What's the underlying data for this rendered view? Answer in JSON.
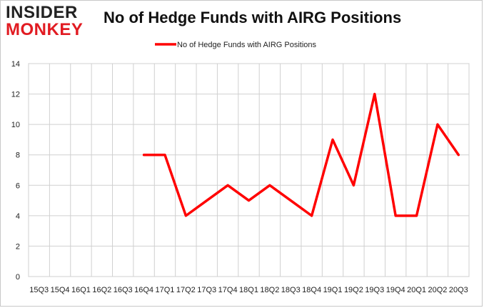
{
  "logo": {
    "line1": "INSIDER",
    "line2": "MONKEY"
  },
  "chart_data": {
    "type": "line",
    "title": "No of Hedge Funds with AIRG Positions",
    "categories": [
      "15Q3",
      "15Q4",
      "16Q1",
      "16Q2",
      "16Q3",
      "16Q4",
      "17Q1",
      "17Q2",
      "17Q3",
      "17Q4",
      "18Q1",
      "18Q2",
      "18Q3",
      "18Q4",
      "19Q1",
      "19Q2",
      "19Q3",
      "19Q4",
      "20Q1",
      "20Q2",
      "20Q3"
    ],
    "series": [
      {
        "name": "No of Hedge Funds with AIRG Positions",
        "color": "#ff0000",
        "values": [
          null,
          null,
          null,
          null,
          null,
          8,
          8,
          4,
          5,
          6,
          5,
          6,
          5,
          4,
          9,
          6,
          12,
          4,
          4,
          10,
          8
        ]
      }
    ],
    "ylim": [
      0,
      14
    ],
    "yticks": [
      0,
      2,
      4,
      6,
      8,
      10,
      12,
      14
    ],
    "grid": true,
    "legend_position": "top-center",
    "xlabel": "",
    "ylabel": ""
  }
}
